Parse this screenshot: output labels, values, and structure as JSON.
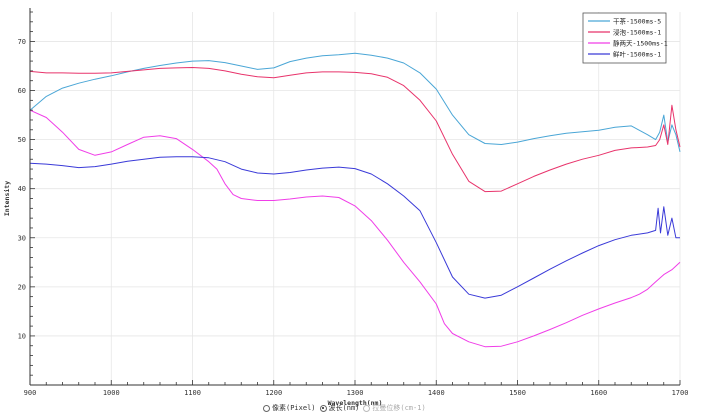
{
  "chart_data": {
    "type": "line",
    "xlabel": "Wavelength(nm)",
    "ylabel": "Intensity",
    "xlim": [
      900,
      1700
    ],
    "ylim": [
      0,
      76
    ],
    "x_ticks": [
      900,
      1000,
      1100,
      1200,
      1300,
      1400,
      1500,
      1600,
      1700
    ],
    "y_ticks": [
      10,
      20,
      30,
      40,
      50,
      60,
      70
    ],
    "grid": true,
    "legend_position": "top-right",
    "series": [
      {
        "name": "干茶-1500ms-5",
        "color": "#4aa6d6",
        "x": [
          900,
          920,
          940,
          960,
          980,
          1000,
          1020,
          1040,
          1060,
          1080,
          1100,
          1120,
          1140,
          1160,
          1180,
          1200,
          1220,
          1240,
          1260,
          1280,
          1300,
          1320,
          1340,
          1360,
          1380,
          1400,
          1420,
          1440,
          1460,
          1480,
          1500,
          1520,
          1540,
          1560,
          1580,
          1600,
          1620,
          1640,
          1660,
          1670,
          1675,
          1680,
          1685,
          1690,
          1695,
          1700
        ],
        "y": [
          56,
          58.8,
          60.5,
          61.5,
          62.3,
          63.0,
          63.8,
          64.5,
          65.1,
          65.6,
          66.0,
          66.1,
          65.7,
          65.0,
          64.3,
          64.6,
          65.9,
          66.6,
          67.1,
          67.3,
          67.6,
          67.2,
          66.6,
          65.6,
          63.6,
          60.3,
          55.0,
          51.0,
          49.2,
          49.0,
          49.5,
          50.2,
          50.8,
          51.3,
          51.6,
          51.9,
          52.5,
          52.8,
          51.0,
          50.0,
          51.5,
          55.0,
          49.5,
          53.0,
          51.0,
          47.5
        ]
      },
      {
        "name": "浸泡-1500ms-1",
        "color": "#e8336b",
        "x": [
          900,
          920,
          940,
          960,
          980,
          1000,
          1020,
          1040,
          1060,
          1080,
          1100,
          1120,
          1140,
          1160,
          1180,
          1200,
          1220,
          1240,
          1260,
          1280,
          1300,
          1320,
          1340,
          1360,
          1380,
          1400,
          1420,
          1440,
          1460,
          1480,
          1500,
          1520,
          1540,
          1560,
          1580,
          1600,
          1620,
          1640,
          1660,
          1670,
          1675,
          1680,
          1685,
          1690,
          1695,
          1700
        ],
        "y": [
          63.9,
          63.6,
          63.6,
          63.5,
          63.5,
          63.6,
          63.9,
          64.2,
          64.5,
          64.6,
          64.7,
          64.5,
          64.0,
          63.3,
          62.8,
          62.6,
          63.1,
          63.6,
          63.8,
          63.8,
          63.7,
          63.4,
          62.7,
          61.0,
          58.0,
          53.8,
          47.0,
          41.5,
          39.4,
          39.5,
          41.0,
          42.5,
          43.8,
          45.0,
          46.0,
          46.8,
          47.8,
          48.3,
          48.5,
          48.8,
          50.0,
          53.0,
          49.0,
          57.0,
          52.0,
          48.5
        ]
      },
      {
        "name": "静两天-1500ms-1",
        "color": "#f03ee8",
        "x": [
          900,
          920,
          940,
          960,
          980,
          1000,
          1020,
          1040,
          1060,
          1080,
          1100,
          1120,
          1130,
          1140,
          1150,
          1160,
          1180,
          1200,
          1220,
          1240,
          1260,
          1280,
          1300,
          1320,
          1340,
          1360,
          1380,
          1400,
          1410,
          1420,
          1440,
          1460,
          1480,
          1500,
          1520,
          1540,
          1560,
          1580,
          1600,
          1620,
          1640,
          1650,
          1660,
          1670,
          1680,
          1690,
          1700
        ],
        "y": [
          56.0,
          54.5,
          51.5,
          48.0,
          46.8,
          47.5,
          49.0,
          50.5,
          50.8,
          50.2,
          48.0,
          45.5,
          44.0,
          41.0,
          38.8,
          38.0,
          37.6,
          37.6,
          37.9,
          38.3,
          38.5,
          38.2,
          36.5,
          33.5,
          29.5,
          25.0,
          21.0,
          16.5,
          12.5,
          10.5,
          8.8,
          7.8,
          7.9,
          8.8,
          10.0,
          11.3,
          12.7,
          14.2,
          15.5,
          16.7,
          17.8,
          18.5,
          19.5,
          21.0,
          22.5,
          23.5,
          25.0
        ]
      },
      {
        "name": "鲜叶-1500ms-1",
        "color": "#3a3ad8",
        "x": [
          900,
          920,
          940,
          960,
          980,
          1000,
          1020,
          1040,
          1060,
          1080,
          1100,
          1120,
          1140,
          1160,
          1180,
          1200,
          1220,
          1240,
          1260,
          1280,
          1300,
          1320,
          1340,
          1360,
          1380,
          1400,
          1420,
          1440,
          1460,
          1480,
          1500,
          1520,
          1540,
          1560,
          1580,
          1600,
          1620,
          1640,
          1660,
          1670,
          1673,
          1676,
          1680,
          1685,
          1690,
          1695,
          1700
        ],
        "y": [
          45.2,
          45.0,
          44.7,
          44.3,
          44.5,
          45.0,
          45.6,
          46.0,
          46.4,
          46.5,
          46.5,
          46.3,
          45.5,
          44.0,
          43.2,
          43.0,
          43.3,
          43.8,
          44.2,
          44.4,
          44.1,
          43.0,
          41.0,
          38.5,
          35.5,
          29.0,
          22.0,
          18.5,
          17.7,
          18.3,
          20.0,
          21.8,
          23.6,
          25.3,
          26.9,
          28.4,
          29.6,
          30.5,
          31.0,
          31.5,
          36.0,
          31.0,
          36.3,
          30.5,
          34.0,
          30.0,
          30.0
        ]
      }
    ]
  },
  "mode_bar": {
    "options": [
      {
        "label": "像素(Pixel)",
        "checked": false,
        "disabled": false
      },
      {
        "label": "波长(nm)",
        "checked": true,
        "disabled": false
      },
      {
        "label": "拉曼位移(cm-1)",
        "checked": false,
        "disabled": true
      }
    ]
  }
}
